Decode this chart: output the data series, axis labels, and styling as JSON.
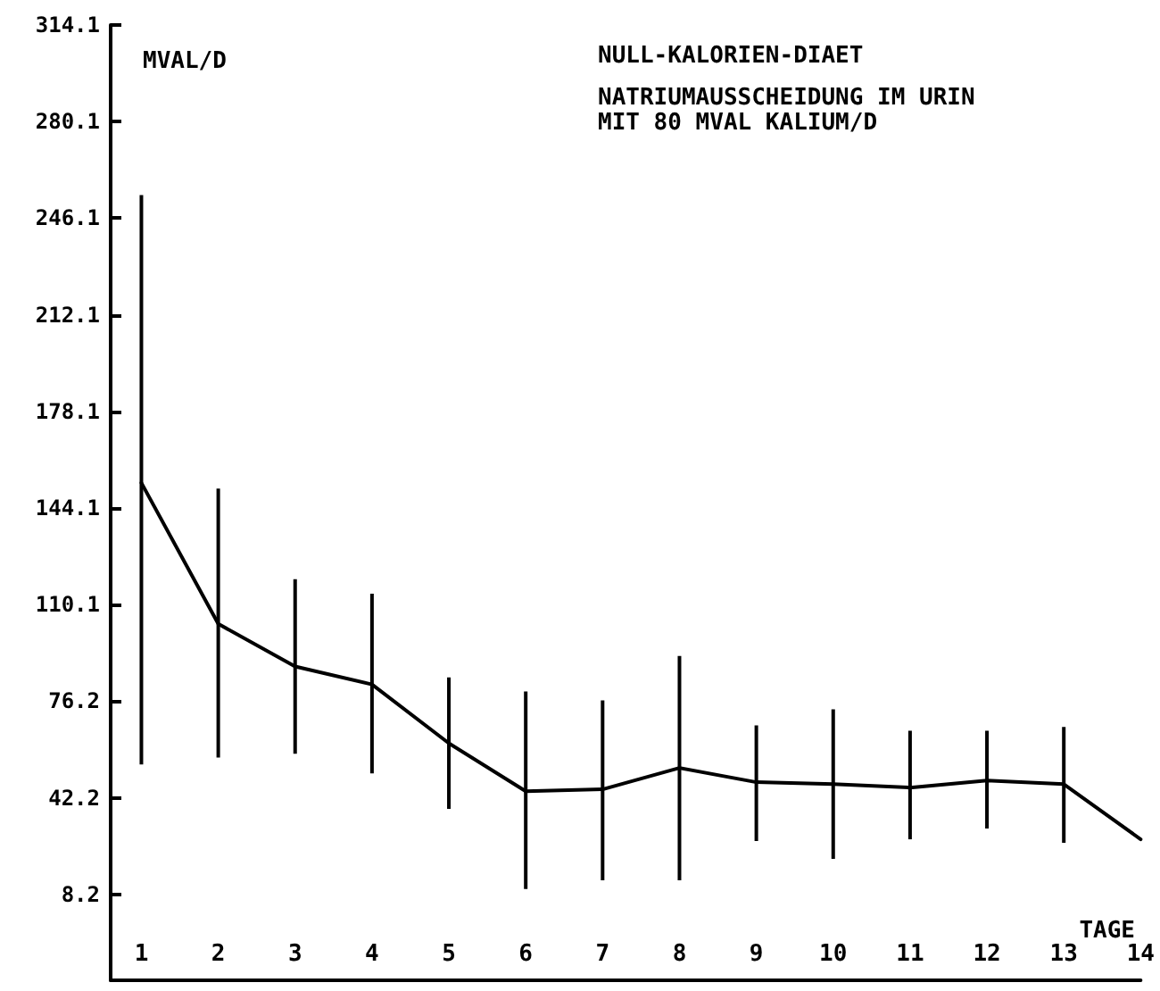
{
  "chart_data": {
    "type": "line",
    "title": "NULL-KALORIEN-DIAET",
    "subtitle": "NATRIUMAUSSCHEIDUNG IM URIN\nMIT 80 MVAL KALIUM/D",
    "ylabel": "MVAL/D",
    "xlabel": "TAGE",
    "x": [
      1,
      2,
      3,
      4,
      5,
      6,
      7,
      8,
      9,
      10,
      11,
      12,
      13,
      14
    ],
    "series": [
      {
        "color": "#000000",
        "values": [
          153,
          103.4,
          88.4,
          82.1,
          61.4,
          44.5,
          45.2,
          52.7,
          47.7,
          47.0,
          45.8,
          48.3,
          47.0,
          27.6
        ],
        "errors": [
          [
            53.9,
            254.3
          ],
          [
            56.4,
            151
          ],
          [
            57.7,
            119.1
          ],
          [
            50.8,
            114
          ],
          [
            38.3,
            84.6
          ],
          [
            10.1,
            79.6
          ],
          [
            13.2,
            76.5
          ],
          [
            13.2,
            92.1
          ],
          [
            27,
            67.7
          ],
          [
            20.7,
            73.3
          ],
          [
            27.6,
            65.8
          ],
          [
            31.4,
            65.8
          ],
          [
            26.4,
            67.1
          ],
          null
        ]
      }
    ],
    "xlim": [
      0.6,
      14
    ],
    "xticks": [
      1,
      2,
      3,
      4,
      5,
      6,
      7,
      8,
      9,
      10,
      11,
      12,
      13,
      14
    ],
    "ylim": [
      -22,
      314.1
    ],
    "yticks": [
      8.2,
      42.2,
      76.2,
      110.1,
      144.1,
      178.1,
      212.1,
      246.1,
      280.1,
      314.1
    ],
    "grid": false,
    "marker": "none",
    "line_style": "solid"
  }
}
